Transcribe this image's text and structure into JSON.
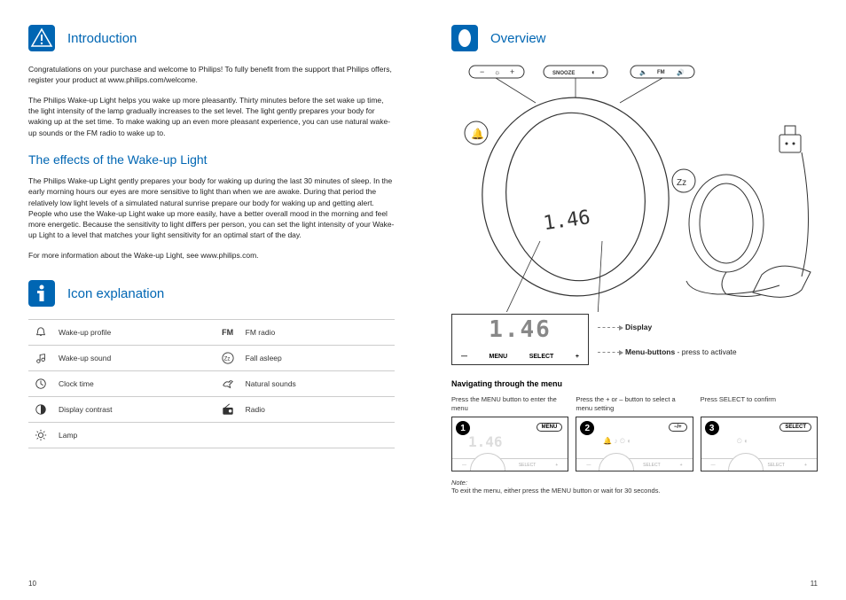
{
  "colors": {
    "brand": "#0066b3",
    "text": "#222",
    "line": "#333"
  },
  "left": {
    "intro": {
      "title": "Introduction",
      "p1": "Congratulations on your purchase and welcome to Philips! To fully benefit from the support that Philips offers, register your product at www.philips.com/welcome.",
      "p2": "The Philips Wake-up Light helps you wake up more pleasantly. Thirty minutes before the set wake up time, the light intensity of the lamp gradually increases to the set level. The light gently prepares your body for waking up at the set time. To make waking up an even more pleasant experience, you can use natural wake-up sounds or the FM radio to wake up to."
    },
    "effects": {
      "title": "The effects of the Wake-up Light",
      "p1": "The Philips Wake-up Light gently prepares your body for waking up during the last 30 minutes of sleep. In the early morning hours our eyes are more sensitive to light than when we are awake. During that period the relatively low light levels of a simulated natural sunrise prepare our body for waking up and getting alert. People who use the Wake-up Light wake up more easily, have a better overall mood in the morning and feel more energetic. Because the sensitivity to light differs per person, you can set the light intensity of your Wake-up Light to a level that matches your light sensitivity for an optimal start of the day.",
      "p2": "For more information about the Wake-up Light, see www.philips.com."
    },
    "icons": {
      "title": "Icon explanation",
      "rows": [
        {
          "l_icon": "bell",
          "l_label": "Wake-up profile",
          "r_icon": "fm",
          "r_label": "FM radio"
        },
        {
          "l_icon": "notes",
          "l_label": "Wake-up sound",
          "r_icon": "zz",
          "r_label": "Fall asleep"
        },
        {
          "l_icon": "clock",
          "l_label": "Clock time",
          "r_icon": "bird",
          "r_label": "Natural sounds"
        },
        {
          "l_icon": "contrast",
          "l_label": "Display contrast",
          "r_icon": "radio",
          "r_label": "Radio"
        },
        {
          "l_icon": "lamp",
          "l_label": "Lamp",
          "r_icon": "",
          "r_label": ""
        }
      ]
    },
    "pageNum": "10"
  },
  "right": {
    "overview": {
      "title": "Overview"
    },
    "display": {
      "digits": "1.46",
      "btns": [
        "—",
        "MENU",
        "SELECT",
        "+"
      ],
      "label1": "Display",
      "label2_b": "Menu-buttons",
      "label2_r": " - press to activate"
    },
    "nav": {
      "title": "Navigating through the menu",
      "steps": [
        {
          "num": "1",
          "caption": "Press the MENU button to enter the menu",
          "btn": "MENU"
        },
        {
          "num": "2",
          "caption": "Press the + or – button to select a menu setting",
          "btn": "−/+"
        },
        {
          "num": "3",
          "caption": "Press SELECT to confirm",
          "btn": "SELECT"
        }
      ],
      "note_i": "Note:",
      "note": "To exit the menu, either press the MENU button or wait for 30 seconds."
    },
    "topButtons": {
      "brightness": [
        "−",
        "☼",
        "+"
      ],
      "snooze": "SNOOZE",
      "contrast": "◐",
      "vol": [
        "🔈",
        "FM",
        "🔊"
      ]
    },
    "pageNum": "11"
  }
}
